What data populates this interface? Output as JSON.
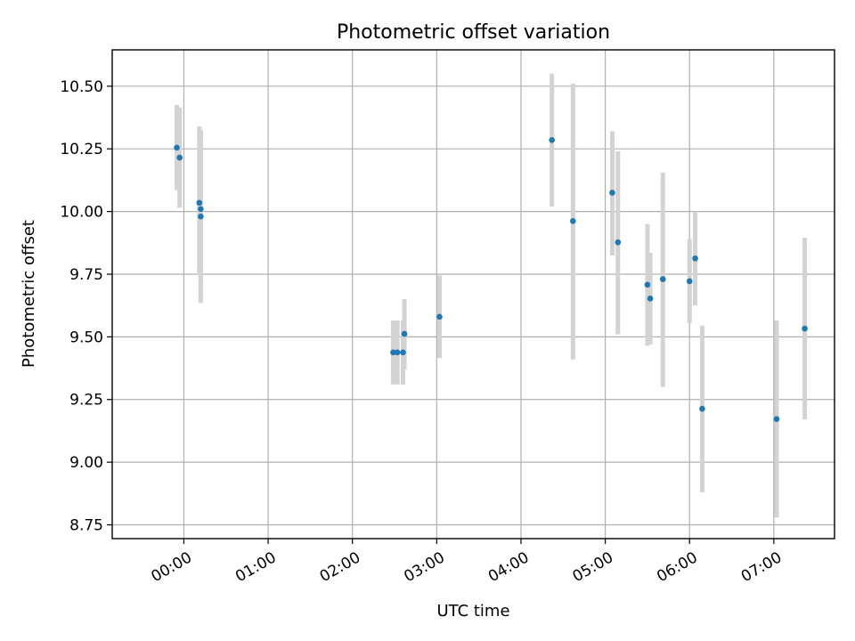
{
  "chart_data": {
    "type": "scatter",
    "title": "Photometric offset variation",
    "xlabel": "UTC time",
    "ylabel": "Photometric offset",
    "x_unit": "hours UTC",
    "xlim": [
      "-0.85h",
      "7.72h"
    ],
    "ylim": [
      8.695,
      10.645
    ],
    "x_ticks": [
      "00:00",
      "01:00",
      "02:00",
      "03:00",
      "04:00",
      "05:00",
      "06:00",
      "07:00"
    ],
    "y_ticks": [
      "8.75",
      "9.00",
      "9.25",
      "9.50",
      "9.75",
      "10.00",
      "10.25",
      "10.50"
    ],
    "grid": true,
    "marker_color": "#1f77b4",
    "errorbar_color": "#d3d3d3",
    "points": [
      {
        "time": "23:55",
        "y": 10.255,
        "yerr_low": 10.085,
        "yerr_high": 10.425
      },
      {
        "time": "23:57",
        "y": 10.215,
        "yerr_low": 10.015,
        "yerr_high": 10.415
      },
      {
        "time": "00:11",
        "y": 10.035,
        "yerr_low": 9.745,
        "yerr_high": 10.34
      },
      {
        "time": "00:12",
        "y": 10.01,
        "yerr_low": 9.7,
        "yerr_high": 10.32
      },
      {
        "time": "00:12",
        "y": 9.98,
        "yerr_low": 9.635,
        "yerr_high": 10.325
      },
      {
        "time": "02:29",
        "y": 9.438,
        "yerr_low": 9.31,
        "yerr_high": 9.565
      },
      {
        "time": "02:32",
        "y": 9.438,
        "yerr_low": 9.31,
        "yerr_high": 9.565
      },
      {
        "time": "02:36",
        "y": 9.438,
        "yerr_low": 9.31,
        "yerr_high": 9.565
      },
      {
        "time": "02:37",
        "y": 9.512,
        "yerr_low": 9.37,
        "yerr_high": 9.65
      },
      {
        "time": "03:02",
        "y": 9.58,
        "yerr_low": 9.415,
        "yerr_high": 9.745
      },
      {
        "time": "04:22",
        "y": 10.285,
        "yerr_low": 10.02,
        "yerr_high": 10.55
      },
      {
        "time": "04:37",
        "y": 9.962,
        "yerr_low": 9.41,
        "yerr_high": 10.51
      },
      {
        "time": "05:05",
        "y": 10.075,
        "yerr_low": 9.825,
        "yerr_high": 10.32
      },
      {
        "time": "05:09",
        "y": 9.877,
        "yerr_low": 9.51,
        "yerr_high": 10.24
      },
      {
        "time": "05:30",
        "y": 9.708,
        "yerr_low": 9.465,
        "yerr_high": 9.95
      },
      {
        "time": "05:32",
        "y": 9.653,
        "yerr_low": 9.47,
        "yerr_high": 9.835
      },
      {
        "time": "05:41",
        "y": 9.73,
        "yerr_low": 9.3,
        "yerr_high": 10.155
      },
      {
        "time": "06:00",
        "y": 9.722,
        "yerr_low": 9.555,
        "yerr_high": 9.89
      },
      {
        "time": "06:04",
        "y": 9.813,
        "yerr_low": 9.625,
        "yerr_high": 10.0
      },
      {
        "time": "06:09",
        "y": 9.213,
        "yerr_low": 8.88,
        "yerr_high": 9.545
      },
      {
        "time": "07:02",
        "y": 9.172,
        "yerr_low": 8.78,
        "yerr_high": 9.565
      },
      {
        "time": "07:22",
        "y": 9.533,
        "yerr_low": 9.17,
        "yerr_high": 9.895
      }
    ]
  }
}
